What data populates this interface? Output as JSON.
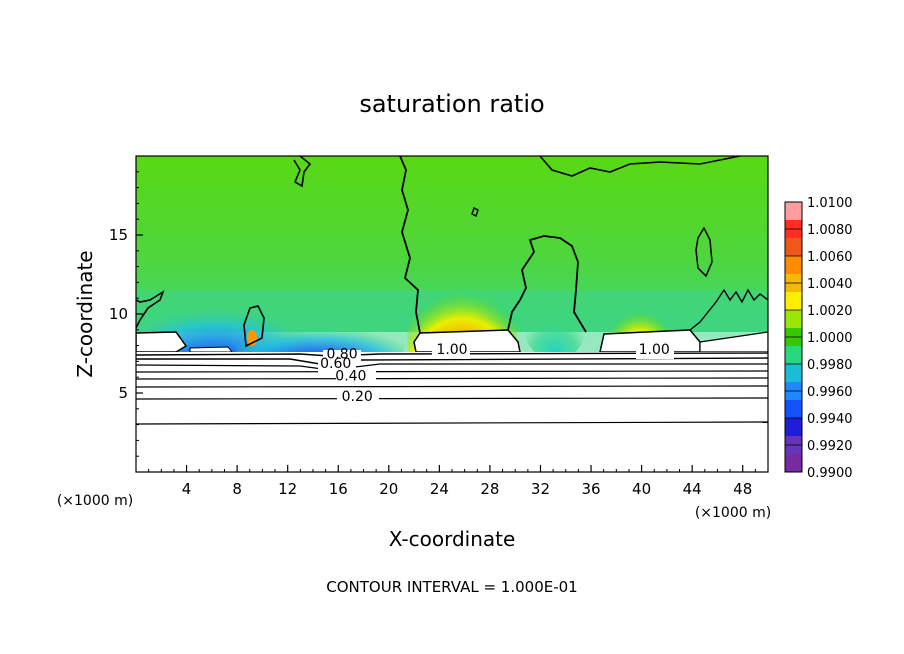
{
  "chart_data": {
    "type": "heatmap",
    "title": "saturation ratio",
    "xlabel": "X-coordinate",
    "ylabel": "Z-coordinate",
    "x_unit": "(×1000 m)",
    "x_unit_right": "(×1000 m)",
    "xlim": [
      0,
      50
    ],
    "ylim": [
      0,
      20
    ],
    "x_ticks": [
      4,
      8,
      12,
      16,
      20,
      24,
      28,
      32,
      36,
      40,
      44,
      48
    ],
    "x_tick_labels": [
      "4",
      "8",
      "12",
      "16",
      "20",
      "24",
      "28",
      "32",
      "36",
      "40",
      "44",
      "48"
    ],
    "y_ticks": [
      5,
      10,
      15
    ],
    "y_tick_labels": [
      "5",
      "10",
      "15"
    ],
    "colorbar": {
      "labels": [
        "1.0100",
        "1.0080",
        "1.0060",
        "1.0040",
        "1.0020",
        "1.0000",
        "0.9980",
        "0.9960",
        "0.9940",
        "0.9920",
        "0.9900"
      ],
      "colors": [
        "#ff9e9e",
        "#ff2e22",
        "#f0571a",
        "#ff8c00",
        "#f3bb00",
        "#ffee00",
        "#9be600",
        "#36c800",
        "#27d880",
        "#1cbcd6",
        "#2288ff",
        "#1450ff",
        "#1e1ed6",
        "#6633bb",
        "#7a2aa0"
      ]
    },
    "contour_labels": [
      {
        "text": "1.00",
        "x": 25.0,
        "y": 7.8
      },
      {
        "text": "1.00",
        "x": 41.0,
        "y": 7.8
      },
      {
        "text": "0.80",
        "x": 16.3,
        "y": 7.5
      },
      {
        "text": "0.60",
        "x": 15.8,
        "y": 6.9
      },
      {
        "text": "0.40",
        "x": 17.0,
        "y": 6.1
      },
      {
        "text": "0.20",
        "x": 17.5,
        "y": 4.8
      }
    ],
    "contour_interval_text": "CONTOUR INTERVAL = 1.000E-01"
  }
}
